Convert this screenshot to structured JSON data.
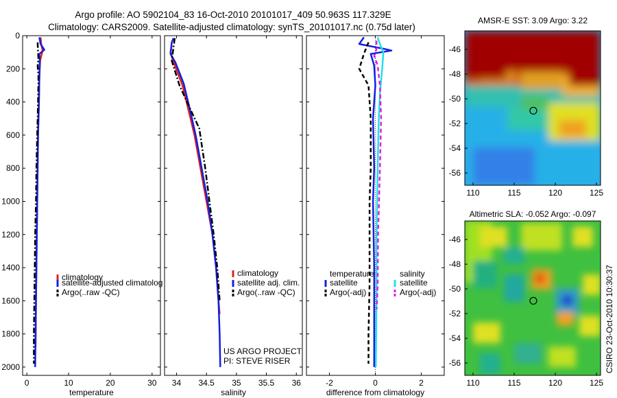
{
  "title": {
    "line1": "Argo profile: AO 5902104_83 16-Oct-2010 20101017_409 50.963S 117.329E",
    "line2": "Climatology: CARS2009. Satellite-adjusted climatology: synTS_20101017.nc (0.75d later)"
  },
  "colors": {
    "climatology": "#e02020",
    "satellite": "#1020e0",
    "argo": "#000000",
    "sal_satellite": "#20e0e8",
    "sal_argo": "#e020e0"
  },
  "chart_data": [
    {
      "type": "line",
      "name": "temperature-profile",
      "xlabel": "temperature",
      "ylabel": "",
      "xlim": [
        -1,
        32
      ],
      "ylim": [
        2050,
        0
      ],
      "xticks": [
        0,
        10,
        20,
        30
      ],
      "xtick_labels": [
        "0",
        "10",
        "20",
        "30"
      ],
      "yticks": [
        0,
        200,
        400,
        600,
        800,
        1000,
        1200,
        1400,
        1600,
        1800,
        2000
      ],
      "ytick_labels": [
        "0",
        "200",
        "400",
        "600",
        "800",
        "1000",
        "1200",
        "1400",
        "1600",
        "1800",
        "2000"
      ],
      "legend": [
        "climatology",
        "satellite-adjusted climatolog",
        "Argo(..raw -QC)"
      ],
      "series": [
        {
          "name": "climatology",
          "style": "solid",
          "color": "#e02020",
          "points": [
            [
              3.3,
              10
            ],
            [
              3.5,
              60
            ],
            [
              3.8,
              90
            ],
            [
              3.2,
              150
            ],
            [
              3.0,
              250
            ],
            [
              2.9,
              400
            ],
            [
              2.7,
              600
            ],
            [
              2.6,
              800
            ],
            [
              2.5,
              1000
            ],
            [
              2.4,
              1200
            ],
            [
              2.3,
              1400
            ],
            [
              2.2,
              1600
            ],
            [
              2.1,
              1880
            ]
          ]
        },
        {
          "name": "satellite",
          "style": "solid",
          "color": "#1020e0",
          "points": [
            [
              3.0,
              10
            ],
            [
              3.3,
              50
            ],
            [
              4.2,
              85
            ],
            [
              3.0,
              110
            ],
            [
              3.1,
              150
            ],
            [
              3.0,
              250
            ],
            [
              2.9,
              400
            ],
            [
              2.7,
              600
            ],
            [
              2.6,
              800
            ],
            [
              2.5,
              1000
            ],
            [
              2.4,
              1200
            ],
            [
              2.3,
              1400
            ],
            [
              2.2,
              1600
            ],
            [
              2.1,
              1800
            ],
            [
              2.0,
              2000
            ]
          ]
        },
        {
          "name": "argo",
          "style": "dashdot",
          "color": "#000000",
          "points": [
            [
              2.6,
              40
            ],
            [
              2.7,
              100
            ],
            [
              2.8,
              140
            ],
            [
              2.6,
              180
            ],
            [
              2.8,
              250
            ],
            [
              2.7,
              400
            ],
            [
              2.5,
              600
            ],
            [
              2.3,
              800
            ],
            [
              2.2,
              1000
            ],
            [
              2.0,
              1200
            ],
            [
              1.9,
              1400
            ],
            [
              1.8,
              1600
            ],
            [
              1.7,
              1800
            ],
            [
              1.7,
              1980
            ]
          ]
        }
      ]
    },
    {
      "type": "line",
      "name": "salinity-profile",
      "xlabel": "salinity",
      "xlim": [
        33.8,
        36.1
      ],
      "ylim": [
        2050,
        0
      ],
      "xticks": [
        34,
        34.5,
        35,
        35.5,
        36
      ],
      "xtick_labels": [
        "34",
        "34.5",
        "35",
        "35.5",
        "36"
      ],
      "legend": [
        "climatology",
        "satellite adj. clim.",
        "Argo(..raw -QC)"
      ],
      "annotations": [
        "US ARGO PROJECT",
        "PI: STEVE RISER"
      ],
      "series": [
        {
          "name": "climatology",
          "style": "solid",
          "color": "#e02020",
          "points": [
            [
              33.92,
              60
            ],
            [
              33.9,
              100
            ],
            [
              33.95,
              160
            ],
            [
              34.1,
              300
            ],
            [
              34.2,
              450
            ],
            [
              34.3,
              600
            ],
            [
              34.4,
              800
            ],
            [
              34.5,
              1000
            ],
            [
              34.6,
              1200
            ],
            [
              34.66,
              1400
            ],
            [
              34.7,
              1600
            ],
            [
              34.72,
              1680
            ]
          ]
        },
        {
          "name": "satellite",
          "style": "solid",
          "color": "#1020e0",
          "points": [
            [
              33.95,
              15
            ],
            [
              33.92,
              40
            ],
            [
              33.9,
              110
            ],
            [
              33.98,
              160
            ],
            [
              34.12,
              290
            ],
            [
              34.22,
              440
            ],
            [
              34.32,
              600
            ],
            [
              34.42,
              800
            ],
            [
              34.52,
              1000
            ],
            [
              34.6,
              1200
            ],
            [
              34.66,
              1400
            ],
            [
              34.7,
              1600
            ],
            [
              34.72,
              1800
            ],
            [
              34.73,
              2000
            ]
          ]
        },
        {
          "name": "argo",
          "style": "dashdot",
          "color": "#000000",
          "points": [
            [
              33.97,
              15
            ],
            [
              33.95,
              70
            ],
            [
              33.92,
              150
            ],
            [
              34.05,
              300
            ],
            [
              34.2,
              420
            ],
            [
              34.38,
              560
            ],
            [
              34.48,
              800
            ],
            [
              34.55,
              1000
            ],
            [
              34.62,
              1200
            ],
            [
              34.68,
              1400
            ],
            [
              34.72,
              1600
            ]
          ]
        }
      ]
    },
    {
      "type": "line",
      "name": "difference-profile",
      "xlabel": "difference from climatology",
      "xlim": [
        -3,
        3
      ],
      "ylim": [
        2050,
        0
      ],
      "xticks": [
        -2,
        0,
        2
      ],
      "xtick_labels": [
        "-2",
        "0",
        "2"
      ],
      "legend_headers": [
        "temperature",
        "salinity"
      ],
      "legend": [
        "satellite",
        "Argo(-adj)",
        "satellite",
        "Argo(-adj)"
      ],
      "series": [
        {
          "name": "temperature satellite",
          "style": "solid",
          "color": "#1020e0",
          "points": [
            [
              -0.5,
              10
            ],
            [
              -0.7,
              50
            ],
            [
              0.4,
              80
            ],
            [
              0.7,
              90
            ],
            [
              -0.2,
              110
            ],
            [
              -0.05,
              180
            ],
            [
              0.0,
              300
            ],
            [
              -0.05,
              400
            ],
            [
              -0.1,
              500
            ],
            [
              -0.05,
              800
            ],
            [
              -0.1,
              1000
            ],
            [
              -0.05,
              1400
            ],
            [
              -0.05,
              1600
            ],
            [
              -0.05,
              2000
            ]
          ]
        },
        {
          "name": "temperature argo",
          "style": "dashed",
          "color": "#000000",
          "points": [
            [
              -0.3,
              40
            ],
            [
              -0.5,
              110
            ],
            [
              -0.7,
              200
            ],
            [
              -0.3,
              300
            ],
            [
              -0.2,
              500
            ],
            [
              -0.2,
              800
            ],
            [
              -0.25,
              1000
            ],
            [
              -0.25,
              1200
            ],
            [
              -0.25,
              1500
            ],
            [
              -0.3,
              1800
            ],
            [
              -0.3,
              1980
            ]
          ]
        },
        {
          "name": "salinity satellite",
          "style": "solid",
          "color": "#20e0e8",
          "points": [
            [
              0.1,
              10
            ],
            [
              0.2,
              50
            ],
            [
              0.35,
              100
            ],
            [
              0.3,
              200
            ],
            [
              0.2,
              350
            ],
            [
              0.15,
              500
            ],
            [
              0.1,
              800
            ],
            [
              0.05,
              1200
            ],
            [
              0.05,
              1600
            ],
            [
              0.02,
              2000
            ]
          ]
        },
        {
          "name": "salinity argo",
          "style": "dashed",
          "color": "#e020e0",
          "points": [
            [
              0.05,
              30
            ],
            [
              0.05,
              80
            ],
            [
              -0.05,
              120
            ],
            [
              0.1,
              180
            ],
            [
              0.2,
              300
            ],
            [
              0.25,
              500
            ],
            [
              0.2,
              800
            ],
            [
              0.12,
              1200
            ],
            [
              0.1,
              1500
            ],
            [
              0.06,
              1650
            ]
          ]
        }
      ]
    },
    {
      "type": "heatmap",
      "name": "amsre-sst-map",
      "title": "AMSR-E SST: 3.09 Argo: 3.22",
      "xlim": [
        109,
        125.5
      ],
      "ylim": [
        -57,
        -44.5
      ],
      "xticks": [
        110,
        115,
        120,
        125
      ],
      "xtick_labels": [
        "110",
        "115",
        "120",
        "125"
      ],
      "yticks": [
        -46,
        -48,
        -50,
        -52,
        -54,
        -56
      ],
      "ytick_labels": [
        "-46",
        "-48",
        "-50",
        "-52",
        "-54",
        "-56"
      ],
      "marker": [
        117.329,
        -50.963
      ]
    },
    {
      "type": "heatmap",
      "name": "altimetric-sla-map",
      "title": "Altimetric SLA: -0.052 Argo: -0.097",
      "xlim": [
        109,
        125.5
      ],
      "ylim": [
        -57,
        -44.5
      ],
      "xticks": [
        110,
        115,
        120,
        125
      ],
      "xtick_labels": [
        "110",
        "115",
        "120",
        "125"
      ],
      "yticks": [
        -46,
        -48,
        -50,
        -52,
        -54,
        -56
      ],
      "ytick_labels": [
        "-46",
        "-48",
        "-50",
        "-52",
        "-54",
        "-56"
      ],
      "marker": [
        117.329,
        -50.963
      ]
    }
  ],
  "side_label": "CSIRO 23-Oct-2010 10:30:37"
}
